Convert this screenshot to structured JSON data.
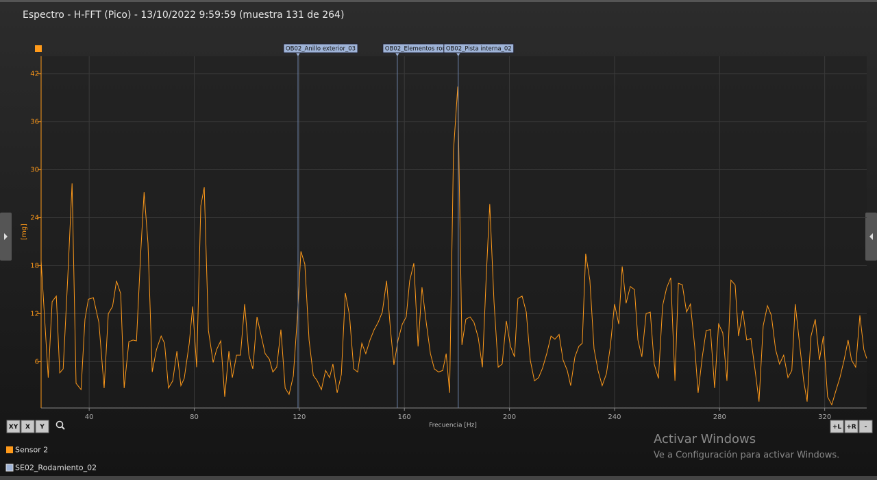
{
  "chart_data": {
    "type": "line",
    "title": "Espectro - H-FFT (Pico) - 13/10/2022 9:59:59 (muestra 131 de 264)",
    "x_label": "Frecuencia [Hz]",
    "y_label": "[mg]",
    "xlim": [
      21.7,
      336
    ],
    "ylim": [
      0.2,
      44.2
    ],
    "xticks": [
      40,
      80,
      120,
      160,
      200,
      240,
      280,
      320
    ],
    "yticks": [
      6,
      12,
      18,
      24,
      30,
      36,
      42
    ],
    "grid": true,
    "series": [
      {
        "name": "Sensor 2",
        "color": "#ff9a1a",
        "x": [
          21.7,
          24.4,
          25.9,
          27.5,
          28.8,
          30.1,
          31.9,
          33.5,
          35.0,
          36.9,
          38.4,
          39.7,
          41.6,
          43.7,
          45.7,
          47.3,
          48.9,
          50.4,
          52.0,
          53.3,
          55.1,
          56.7,
          58.0,
          59.6,
          60.9,
          62.4,
          64.0,
          65.6,
          67.4,
          68.7,
          70.2,
          71.8,
          73.4,
          74.9,
          76.2,
          78.1,
          79.4,
          80.9,
          82.5,
          83.8,
          85.4,
          87.2,
          88.5,
          90.1,
          91.6,
          93.2,
          94.5,
          96.1,
          97.6,
          99.2,
          100.8,
          102.3,
          103.9,
          105.5,
          107.0,
          108.6,
          109.9,
          111.4,
          113.0,
          114.6,
          116.1,
          117.7,
          119.3,
          120.6,
          122.1,
          123.7,
          125.3,
          126.8,
          128.4,
          130.0,
          131.5,
          132.8,
          134.4,
          136.0,
          137.5,
          139.1,
          140.7,
          142.2,
          143.8,
          145.3,
          146.9,
          148.5,
          150.0,
          151.6,
          153.2,
          154.7,
          156.0,
          157.6,
          159.2,
          160.7,
          162.0,
          163.6,
          165.2,
          166.7,
          168.3,
          169.9,
          171.4,
          173.0,
          174.6,
          175.9,
          177.2,
          178.7,
          180.3,
          181.9,
          183.4,
          185.0,
          186.5,
          188.1,
          189.7,
          191.2,
          192.5,
          194.1,
          195.7,
          197.2,
          198.8,
          200.4,
          201.9,
          203.2,
          204.8,
          206.4,
          207.9,
          209.5,
          211.1,
          212.6,
          214.2,
          215.8,
          217.3,
          218.9,
          220.4,
          222.0,
          223.3,
          224.9,
          226.4,
          227.7,
          229.0,
          230.6,
          232.2,
          233.7,
          235.3,
          236.9,
          238.4,
          240.0,
          241.6,
          242.9,
          244.4,
          246.0,
          247.6,
          248.9,
          250.4,
          252.0,
          253.6,
          255.1,
          256.7,
          258.3,
          259.8,
          261.4,
          263.0,
          264.3,
          265.8,
          267.4,
          268.9,
          270.5,
          271.8,
          273.4,
          274.9,
          276.5,
          278.1,
          279.6,
          281.2,
          282.8,
          284.3,
          285.9,
          287.2,
          288.8,
          290.3,
          291.9,
          293.5,
          295.0,
          296.6,
          298.2,
          299.7,
          301.3,
          302.8,
          304.4,
          306.0,
          307.5,
          308.8,
          310.4,
          312.0,
          313.3,
          314.8,
          316.4,
          318.0,
          319.5,
          321.1,
          322.7,
          324.2,
          325.8,
          327.4,
          328.9,
          330.2,
          331.8,
          333.4,
          334.9,
          336.0
        ],
        "values": [
          18.6,
          4.0,
          13.5,
          14.2,
          4.6,
          5.1,
          16.9,
          28.3,
          3.3,
          2.5,
          11.3,
          13.8,
          14.0,
          10.9,
          2.7,
          12.0,
          12.9,
          16.1,
          14.5,
          2.7,
          8.5,
          8.7,
          8.6,
          19.5,
          27.2,
          20.8,
          4.7,
          7.5,
          9.2,
          8.3,
          2.7,
          3.6,
          7.3,
          3.0,
          3.9,
          8.3,
          12.9,
          5.3,
          25.5,
          27.8,
          9.9,
          5.9,
          7.5,
          8.6,
          1.6,
          7.3,
          4.0,
          6.8,
          6.8,
          13.2,
          6.8,
          5.1,
          11.6,
          9.2,
          7.0,
          6.3,
          4.7,
          5.3,
          10.0,
          2.7,
          1.9,
          4.2,
          11.8,
          19.8,
          18.2,
          8.7,
          4.3,
          3.6,
          2.5,
          4.9,
          4.0,
          5.7,
          2.1,
          4.4,
          14.6,
          11.8,
          5.1,
          4.7,
          8.3,
          7.0,
          8.7,
          10.0,
          10.9,
          12.2,
          16.1,
          10.0,
          5.6,
          8.7,
          10.7,
          11.6,
          16.1,
          18.3,
          7.9,
          15.3,
          10.9,
          7.0,
          5.1,
          4.7,
          4.9,
          7.0,
          2.1,
          32.4,
          40.4,
          8.1,
          11.3,
          11.6,
          10.9,
          9.0,
          5.3,
          16.9,
          25.7,
          13.5,
          5.3,
          5.7,
          11.1,
          7.9,
          6.6,
          13.9,
          14.2,
          12.2,
          6.2,
          3.6,
          4.0,
          5.2,
          7.0,
          9.2,
          8.8,
          9.4,
          6.2,
          4.9,
          3.0,
          6.6,
          7.9,
          8.3,
          19.5,
          16.2,
          7.6,
          4.9,
          3.0,
          4.5,
          7.9,
          13.2,
          10.7,
          17.9,
          13.3,
          15.4,
          15.0,
          8.7,
          6.6,
          12.0,
          12.2,
          5.7,
          3.9,
          13.0,
          15.2,
          16.5,
          3.6,
          15.8,
          15.6,
          12.2,
          13.2,
          7.9,
          2.1,
          6.6,
          9.9,
          10.0,
          2.7,
          10.7,
          9.6,
          3.6,
          16.2,
          15.6,
          9.2,
          12.4,
          8.7,
          8.9,
          4.9,
          1.0,
          10.5,
          13.0,
          11.8,
          7.5,
          5.7,
          6.8,
          4.0,
          4.9,
          13.2,
          8.3,
          3.6,
          1.0,
          9.2,
          11.3,
          6.2,
          9.2,
          1.6,
          0.6,
          2.3,
          4.0,
          6.2,
          8.7,
          6.2,
          5.3,
          11.8,
          7.5,
          6.4
        ]
      }
    ],
    "marker_group": {
      "name": "SE02_Rodamiento_02",
      "color": "#9fb4d8"
    },
    "markers": [
      {
        "label": "OB02_Anillo exterior_03",
        "x": 119.5
      },
      {
        "label": "OB02_Elementos rod",
        "x": 157.3
      },
      {
        "label": "OB02_Pista interna_02",
        "x": 180.5
      }
    ]
  },
  "ui": {
    "buttons_left": [
      "XY",
      "X",
      "Y"
    ],
    "buttons_right": [
      "+L",
      "+R",
      "-"
    ],
    "watermark_title": "Activar Windows",
    "watermark_text": "Ve a Configuración para activar Windows."
  }
}
